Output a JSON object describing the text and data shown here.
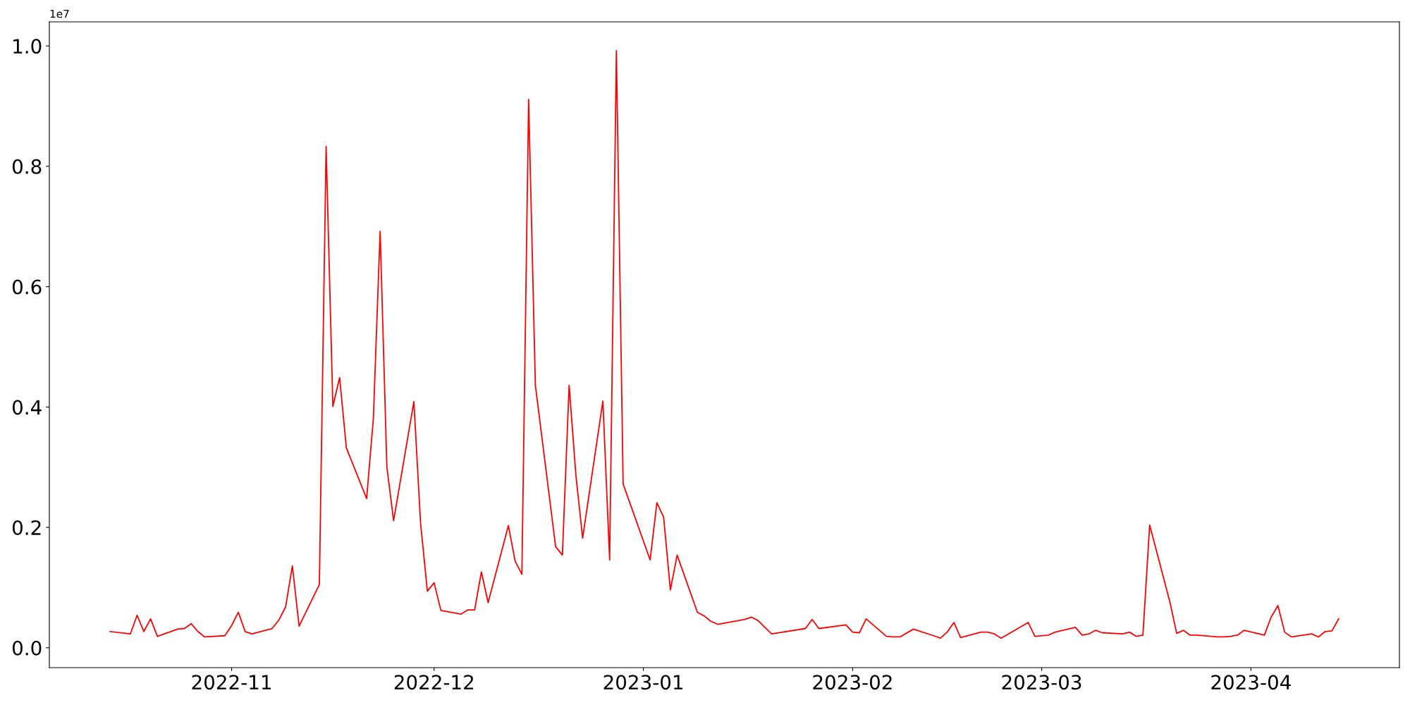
{
  "chart_data": {
    "type": "line",
    "x": [
      "2022-10-14",
      "2022-10-17",
      "2022-10-18",
      "2022-10-19",
      "2022-10-20",
      "2022-10-21",
      "2022-10-24",
      "2022-10-25",
      "2022-10-26",
      "2022-10-27",
      "2022-10-28",
      "2022-10-31",
      "2022-11-01",
      "2022-11-02",
      "2022-11-03",
      "2022-11-04",
      "2022-11-07",
      "2022-11-08",
      "2022-11-09",
      "2022-11-10",
      "2022-11-11",
      "2022-11-14",
      "2022-11-15",
      "2022-11-16",
      "2022-11-17",
      "2022-11-18",
      "2022-11-21",
      "2022-11-22",
      "2022-11-23",
      "2022-11-24",
      "2022-11-25",
      "2022-11-28",
      "2022-11-29",
      "2022-11-30",
      "2022-12-01",
      "2022-12-02",
      "2022-12-05",
      "2022-12-06",
      "2022-12-07",
      "2022-12-08",
      "2022-12-09",
      "2022-12-12",
      "2022-12-13",
      "2022-12-14",
      "2022-12-15",
      "2022-12-16",
      "2022-12-19",
      "2022-12-20",
      "2022-12-21",
      "2022-12-22",
      "2022-12-23",
      "2022-12-26",
      "2022-12-27",
      "2022-12-28",
      "2022-12-29",
      "2023-01-02",
      "2023-01-03",
      "2023-01-04",
      "2023-01-05",
      "2023-01-06",
      "2023-01-09",
      "2023-01-10",
      "2023-01-11",
      "2023-01-12",
      "2023-01-16",
      "2023-01-17",
      "2023-01-18",
      "2023-01-19",
      "2023-01-20",
      "2023-01-25",
      "2023-01-26",
      "2023-01-27",
      "2023-01-31",
      "2023-02-01",
      "2023-02-02",
      "2023-02-03",
      "2023-02-06",
      "2023-02-07",
      "2023-02-08",
      "2023-02-10",
      "2023-02-13",
      "2023-02-14",
      "2023-02-15",
      "2023-02-16",
      "2023-02-17",
      "2023-02-20",
      "2023-02-21",
      "2023-02-22",
      "2023-02-23",
      "2023-02-27",
      "2023-02-28",
      "2023-03-02",
      "2023-03-03",
      "2023-03-06",
      "2023-03-07",
      "2023-03-08",
      "2023-03-09",
      "2023-03-10",
      "2023-03-13",
      "2023-03-14",
      "2023-03-15",
      "2023-03-16",
      "2023-03-17",
      "2023-03-20",
      "2023-03-21",
      "2023-03-22",
      "2023-03-23",
      "2023-03-24",
      "2023-03-27",
      "2023-03-28",
      "2023-03-29",
      "2023-03-30",
      "2023-03-31",
      "2023-04-03",
      "2023-04-04",
      "2023-04-05",
      "2023-04-06",
      "2023-04-07",
      "2023-04-10",
      "2023-04-11",
      "2023-04-12",
      "2023-04-13",
      "2023-04-14"
    ],
    "series": [
      {
        "color": "#ff0000",
        "values": [
          0.027,
          0.023,
          0.054,
          0.027,
          0.048,
          0.019,
          0.031,
          0.032,
          0.04,
          0.027,
          0.018,
          0.02,
          0.037,
          0.059,
          0.027,
          0.023,
          0.032,
          0.046,
          0.068,
          0.136,
          0.036,
          0.105,
          0.833,
          0.401,
          0.449,
          0.332,
          0.248,
          0.381,
          0.692,
          0.3,
          0.211,
          0.409,
          0.206,
          0.094,
          0.108,
          0.062,
          0.056,
          0.063,
          0.063,
          0.126,
          0.075,
          0.203,
          0.144,
          0.122,
          0.911,
          0.436,
          0.168,
          0.154,
          0.436,
          0.287,
          0.182,
          0.41,
          0.146,
          0.992,
          0.272,
          0.146,
          0.241,
          0.217,
          0.096,
          0.154,
          0.059,
          0.053,
          0.044,
          0.039,
          0.047,
          0.051,
          0.045,
          0.034,
          0.023,
          0.032,
          0.047,
          0.032,
          0.038,
          0.026,
          0.025,
          0.048,
          0.019,
          0.018,
          0.018,
          0.031,
          0.02,
          0.016,
          0.026,
          0.042,
          0.017,
          0.026,
          0.026,
          0.023,
          0.016,
          0.042,
          0.019,
          0.021,
          0.026,
          0.034,
          0.021,
          0.023,
          0.029,
          0.025,
          0.023,
          0.026,
          0.019,
          0.021,
          0.204,
          0.076,
          0.024,
          0.029,
          0.021,
          0.021,
          0.018,
          0.018,
          0.019,
          0.021,
          0.029,
          0.021,
          0.051,
          0.07,
          0.026,
          0.018,
          0.023,
          0.018,
          0.027,
          0.028,
          0.048
        ]
      }
    ],
    "xlim": [
      "2022-10-05",
      "2023-04-23"
    ],
    "xticks": [
      {
        "value": "2022-11-01",
        "label": "2022-11"
      },
      {
        "value": "2022-12-01",
        "label": "2022-12"
      },
      {
        "value": "2023-01-01",
        "label": "2023-01"
      },
      {
        "value": "2023-02-01",
        "label": "2023-02"
      },
      {
        "value": "2023-03-01",
        "label": "2023-03"
      },
      {
        "value": "2023-04-01",
        "label": "2023-04"
      }
    ],
    "ylim": [
      -0.033,
      1.04
    ],
    "yticks": [
      {
        "value": 0,
        "label": "0.0"
      },
      0.2,
      0.4,
      0.6,
      0.8,
      {
        "value": 1,
        "label": "1.0"
      }
    ],
    "annotations": [
      "1e7"
    ],
    "grid": false,
    "line_style": "solid",
    "marker": "none"
  }
}
